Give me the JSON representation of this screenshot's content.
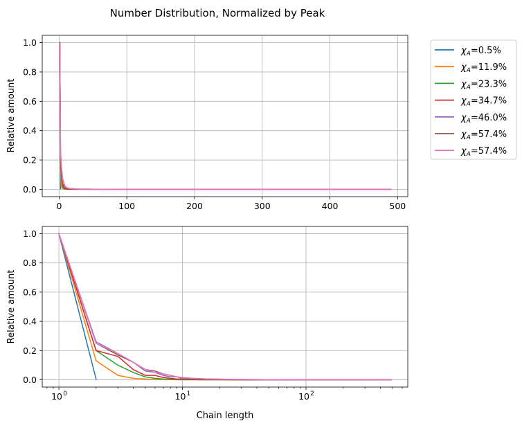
{
  "chart_data": {
    "title": "Number Distribution, Normalized by Peak",
    "legend_position": "outside-right",
    "series": [
      {
        "name": "χ_A=0.5%",
        "label_main": "χ",
        "label_sub": "A",
        "label_rest": "=0.5%",
        "color": "#1f77b4",
        "x": [
          1,
          2
        ],
        "y": [
          1.0,
          0.005
        ]
      },
      {
        "name": "χ_A=11.9%",
        "label_main": "χ",
        "label_sub": "A",
        "label_rest": "=11.9%",
        "color": "#ff7f0e",
        "x": [
          1,
          2,
          3,
          4,
          5,
          6,
          8,
          10,
          15,
          20,
          50,
          100,
          300,
          490
        ],
        "y": [
          1.0,
          0.13,
          0.03,
          0.01,
          0.005,
          0.003,
          0.001,
          0.0,
          0.0,
          0.0,
          0.0,
          0.0,
          0.0,
          0.0
        ]
      },
      {
        "name": "χ_A=23.3%",
        "label_main": "χ",
        "label_sub": "A",
        "label_rest": "=23.3%",
        "color": "#2ca02c",
        "x": [
          1,
          2,
          3,
          4,
          5,
          6,
          7,
          8,
          10,
          15,
          20,
          50,
          100,
          300,
          490
        ],
        "y": [
          1.0,
          0.2,
          0.1,
          0.05,
          0.02,
          0.01,
          0.005,
          0.003,
          0.001,
          0.0,
          0.0,
          0.0,
          0.0,
          0.0,
          0.0
        ]
      },
      {
        "name": "χ_A=34.7%",
        "label_main": "χ",
        "label_sub": "A",
        "label_rest": "=34.7%",
        "color": "#d62728",
        "x": [
          1,
          2,
          3,
          4,
          5,
          6,
          7,
          8,
          9,
          10,
          12,
          15,
          20,
          30,
          50,
          100,
          300,
          490
        ],
        "y": [
          1.0,
          0.2,
          0.16,
          0.07,
          0.03,
          0.03,
          0.015,
          0.01,
          0.005,
          0.005,
          0.003,
          0.002,
          0.001,
          0.0,
          0.0,
          0.0,
          0.0,
          0.0
        ]
      },
      {
        "name": "χ_A=46.0%",
        "label_main": "χ",
        "label_sub": "A",
        "label_rest": "=46.0%",
        "color": "#9467bd",
        "x": [
          1,
          2,
          3,
          4,
          5,
          6,
          7,
          8,
          9,
          10,
          12,
          15,
          20,
          30,
          50,
          100,
          300,
          490
        ],
        "y": [
          1.0,
          0.26,
          0.18,
          0.12,
          0.06,
          0.05,
          0.03,
          0.02,
          0.02,
          0.01,
          0.008,
          0.006,
          0.003,
          0.001,
          0.0,
          0.0,
          0.0,
          0.0
        ]
      },
      {
        "name": "χ_A=57.4%",
        "label_main": "χ",
        "label_sub": "A",
        "label_rest": "=57.4%",
        "color": "#8c564b",
        "x": [
          1,
          2,
          3,
          4,
          5,
          6,
          7,
          8,
          9,
          10,
          12,
          15,
          20,
          30,
          50,
          100,
          300,
          490
        ],
        "y": [
          1.0,
          0.25,
          0.17,
          0.12,
          0.07,
          0.06,
          0.04,
          0.03,
          0.02,
          0.015,
          0.01,
          0.006,
          0.004,
          0.002,
          0.001,
          0.0,
          0.0,
          0.0
        ]
      },
      {
        "name": "χ_A=57.4%",
        "label_main": "χ",
        "label_sub": "A",
        "label_rest": "=57.4%",
        "color": "#e377c2",
        "x": [
          1,
          2,
          3,
          4,
          5,
          6,
          7,
          8,
          9,
          10,
          12,
          15,
          20,
          30,
          50,
          100,
          300,
          490
        ],
        "y": [
          1.0,
          0.25,
          0.18,
          0.12,
          0.07,
          0.05,
          0.04,
          0.03,
          0.02,
          0.015,
          0.01,
          0.006,
          0.004,
          0.002,
          0.001,
          0.0,
          0.0,
          0.0
        ]
      }
    ],
    "subplots": [
      {
        "type": "line",
        "xscale": "linear",
        "xlim": [
          -25,
          515
        ],
        "ylim": [
          -0.05,
          1.05
        ],
        "xticks": [
          0,
          100,
          200,
          300,
          400,
          500
        ],
        "xtick_labels": [
          "0",
          "100",
          "200",
          "300",
          "400",
          "500"
        ],
        "yticks": [
          0.0,
          0.2,
          0.4,
          0.6,
          0.8,
          1.0
        ],
        "ytick_labels": [
          "0.0",
          "0.2",
          "0.4",
          "0.6",
          "0.8",
          "1.0"
        ],
        "xlabel": "",
        "ylabel": "Relative amount",
        "grid": true
      },
      {
        "type": "line",
        "xscale": "log",
        "xlim": [
          0.733,
          666
        ],
        "ylim": [
          -0.05,
          1.05
        ],
        "xticks": [
          1,
          10,
          100
        ],
        "xtick_base": [
          "10",
          "10",
          "10"
        ],
        "xtick_exp": [
          "0",
          "1",
          "2"
        ],
        "yticks": [
          0.0,
          0.2,
          0.4,
          0.6,
          0.8,
          1.0
        ],
        "ytick_labels": [
          "0.0",
          "0.2",
          "0.4",
          "0.6",
          "0.8",
          "1.0"
        ],
        "xlabel": "Chain length",
        "ylabel": "Relative amount",
        "grid": true
      }
    ]
  }
}
